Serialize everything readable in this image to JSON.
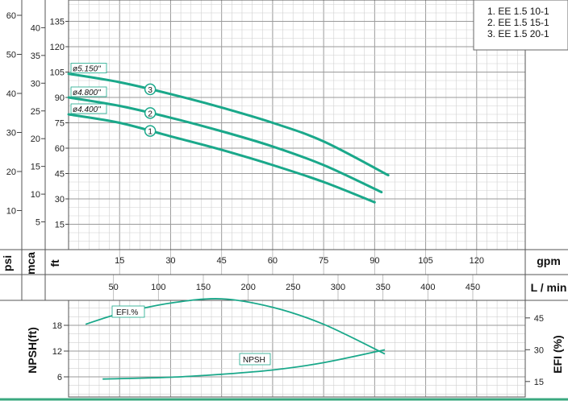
{
  "chart_data": {
    "type": "line",
    "legend": [
      "1. EE 1.5 10-1",
      "2. EE 1.5 15-1",
      "3. EE 1.5 20-1"
    ],
    "axes": {
      "head_ft": {
        "label": "ft",
        "ticks": [
          15,
          30,
          45,
          60,
          75,
          90,
          105,
          120,
          135
        ]
      },
      "head_mca": {
        "label": "mca",
        "ticks": [
          5,
          10,
          15,
          20,
          25,
          30,
          35,
          40
        ]
      },
      "head_psi": {
        "label": "psi",
        "ticks": [
          10,
          20,
          30,
          40,
          50,
          60
        ]
      },
      "flow_gpm": {
        "label": "gpm",
        "ticks": [
          15,
          30,
          45,
          60,
          75,
          90,
          105,
          120
        ]
      },
      "flow_lmin": {
        "label": "L / min",
        "ticks": [
          50,
          100,
          150,
          200,
          250,
          300,
          350,
          400,
          450
        ]
      },
      "npsh": {
        "label": "NPSH(ft)",
        "ticks": [
          6,
          12,
          18
        ]
      },
      "efi": {
        "label": "EFI (%)",
        "ticks": [
          15,
          30,
          45
        ]
      }
    },
    "series": [
      {
        "name": "1",
        "impeller": "ø4.400\"",
        "x": [
          0,
          15,
          30,
          45,
          60,
          75,
          90
        ],
        "y": [
          80,
          75,
          67,
          59,
          50,
          40,
          28
        ]
      },
      {
        "name": "2",
        "impeller": "ø4.800\"",
        "x": [
          0,
          15,
          30,
          45,
          60,
          75,
          92
        ],
        "y": [
          90,
          85,
          78,
          70,
          61,
          50,
          34
        ]
      },
      {
        "name": "3",
        "impeller": "ø5.150\"",
        "x": [
          0,
          15,
          30,
          45,
          60,
          75,
          94
        ],
        "y": [
          104,
          99,
          92,
          84,
          75,
          64,
          44
        ]
      }
    ],
    "efficiency": {
      "label": "EFI.%",
      "x": [
        5,
        15,
        30,
        45,
        60,
        75,
        93
      ],
      "y": [
        42,
        47,
        52,
        54,
        50,
        42,
        28
      ]
    },
    "npsh_curve": {
      "label": "NPSH",
      "x": [
        10,
        30,
        45,
        60,
        75,
        93
      ],
      "y": [
        5.5,
        5.9,
        6.6,
        7.6,
        9.3,
        12.3
      ]
    },
    "grid": true,
    "ylim_ft": [
      0,
      147
    ],
    "xlim_gpm": [
      0,
      134
    ]
  }
}
